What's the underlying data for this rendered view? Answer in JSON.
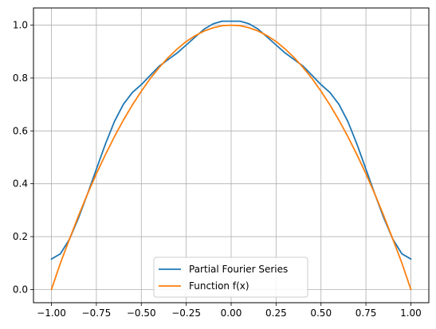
{
  "chart_data": {
    "type": "line",
    "title": "",
    "xlabel": "",
    "ylabel": "",
    "xlim": [
      -1.1,
      1.1
    ],
    "ylim": [
      -0.05,
      1.065
    ],
    "grid": true,
    "legend_placement": "lower-center",
    "x_ticks": [
      -1.0,
      -0.75,
      -0.5,
      -0.25,
      0.0,
      0.25,
      0.5,
      0.75,
      1.0
    ],
    "x_tick_labels": [
      "−1.00",
      "−0.75",
      "−0.50",
      "−0.25",
      "0.00",
      "0.25",
      "0.50",
      "0.75",
      "1.00"
    ],
    "y_ticks": [
      0.0,
      0.2,
      0.4,
      0.6,
      0.8,
      1.0
    ],
    "y_tick_labels": [
      "0.0",
      "0.2",
      "0.4",
      "0.6",
      "0.8",
      "1.0"
    ],
    "series": [
      {
        "name": "Partial Fourier Series",
        "color": "#1f77b4",
        "x": [
          -1.0,
          -0.95,
          -0.9,
          -0.85,
          -0.8,
          -0.75,
          -0.7,
          -0.65,
          -0.6,
          -0.55,
          -0.5,
          -0.45,
          -0.4,
          -0.35,
          -0.3,
          -0.25,
          -0.2,
          -0.15,
          -0.1,
          -0.05,
          0.0,
          0.05,
          0.1,
          0.15,
          0.2,
          0.25,
          0.3,
          0.35,
          0.4,
          0.45,
          0.5,
          0.55,
          0.6,
          0.65,
          0.7,
          0.75,
          0.8,
          0.85,
          0.9,
          0.95,
          1.0
        ],
        "y": [
          0.115,
          0.135,
          0.19,
          0.27,
          0.36,
          0.455,
          0.55,
          0.635,
          0.7,
          0.745,
          0.775,
          0.81,
          0.845,
          0.87,
          0.895,
          0.925,
          0.955,
          0.985,
          1.005,
          1.015,
          1.015,
          1.015,
          1.005,
          0.985,
          0.955,
          0.925,
          0.895,
          0.87,
          0.845,
          0.81,
          0.775,
          0.745,
          0.7,
          0.635,
          0.55,
          0.455,
          0.36,
          0.27,
          0.19,
          0.135,
          0.115
        ]
      },
      {
        "name": "Function f(x)",
        "color": "#ff7f0e",
        "x": [
          -1.0,
          -0.95,
          -0.9,
          -0.85,
          -0.8,
          -0.75,
          -0.7,
          -0.65,
          -0.6,
          -0.55,
          -0.5,
          -0.45,
          -0.4,
          -0.35,
          -0.3,
          -0.25,
          -0.2,
          -0.15,
          -0.1,
          -0.05,
          0.0,
          0.05,
          0.1,
          0.15,
          0.2,
          0.25,
          0.3,
          0.35,
          0.4,
          0.45,
          0.5,
          0.55,
          0.6,
          0.65,
          0.7,
          0.75,
          0.8,
          0.85,
          0.9,
          0.95,
          1.0
        ],
        "y": [
          0.0,
          0.1,
          0.19,
          0.278,
          0.36,
          0.438,
          0.51,
          0.578,
          0.64,
          0.698,
          0.75,
          0.798,
          0.84,
          0.878,
          0.91,
          0.938,
          0.96,
          0.978,
          0.99,
          0.998,
          1.0,
          0.998,
          0.99,
          0.978,
          0.96,
          0.938,
          0.91,
          0.878,
          0.84,
          0.798,
          0.75,
          0.698,
          0.64,
          0.578,
          0.51,
          0.438,
          0.36,
          0.278,
          0.19,
          0.1,
          0.0
        ]
      }
    ]
  }
}
